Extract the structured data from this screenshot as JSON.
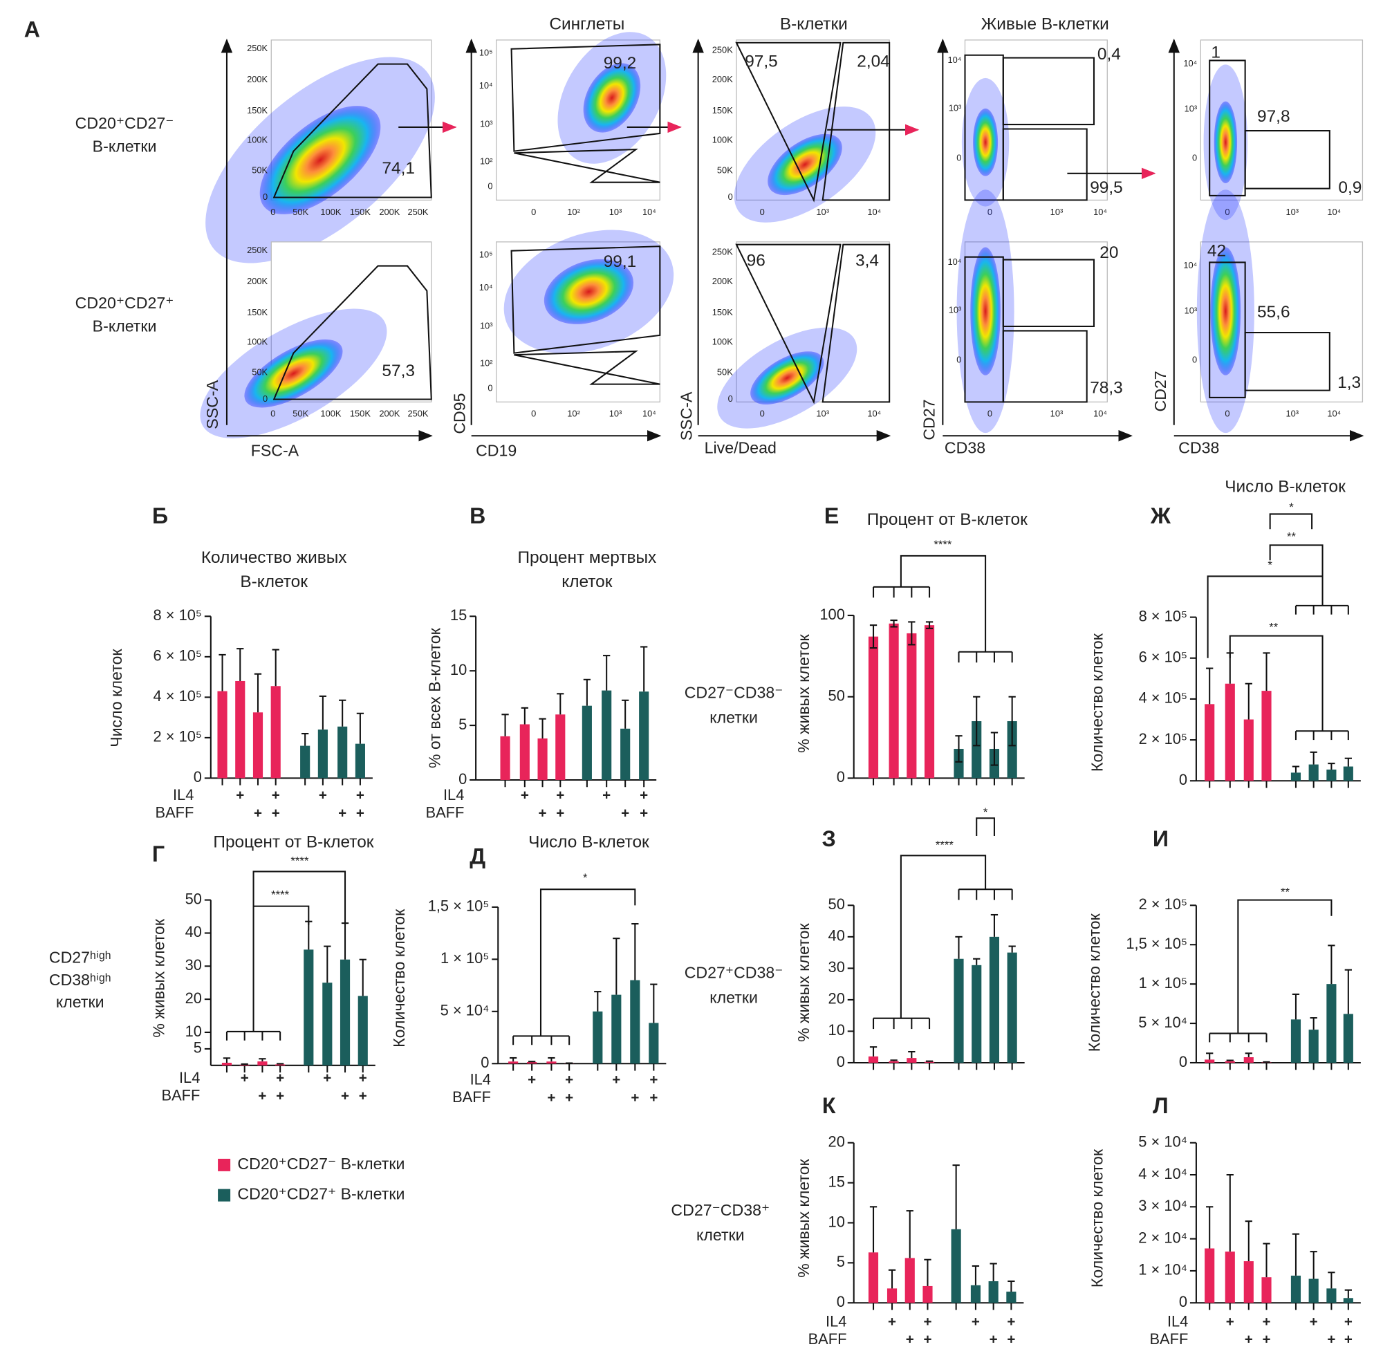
{
  "flow": {
    "letter": "А",
    "row_labels": [
      [
        "CD20⁺CD27⁻",
        "В-клетки"
      ],
      [
        "CD20⁺CD27⁺",
        "В-клетки"
      ]
    ],
    "columns": [
      {
        "xlabel": "FSC-A",
        "ylabel": "SSC-A",
        "yticks": [
          "250K",
          "200K",
          "150K",
          "100K",
          "50K",
          "0"
        ],
        "xticks": [
          "0",
          "50K",
          "100K",
          "150K",
          "200K",
          "250K"
        ],
        "gates": [
          [
            "74,1"
          ],
          [
            "57,3"
          ]
        ]
      },
      {
        "title": "Синглеты",
        "xlabel": "CD19",
        "ylabel": "CD95",
        "yticks": [
          "10⁵",
          "10⁴",
          "10³",
          "10²",
          "0"
        ],
        "xticks": [
          "0",
          "10²",
          "10³",
          "10⁴"
        ],
        "gates": [
          [
            "99,2"
          ],
          [
            "99,1"
          ]
        ]
      },
      {
        "title": "В-клетки",
        "xlabel": "Live/Dead",
        "ylabel": "SSC-A",
        "yticks": [
          "250K",
          "200K",
          "150K",
          "100K",
          "50K",
          "0"
        ],
        "xticks": [
          "0",
          "10³",
          "10⁴"
        ],
        "gates": [
          [
            "97,5",
            "2,04"
          ],
          [
            "96",
            "3,4"
          ]
        ]
      },
      {
        "title": "Живые В-клетки",
        "xlabel": "CD38",
        "ylabel": "CD27",
        "yticks": [
          "10⁴",
          "10³",
          "0"
        ],
        "xticks": [
          "0",
          "10³",
          "10⁴"
        ],
        "gates": [
          [
            "0,4",
            "99,5"
          ],
          [
            "20",
            "78,3"
          ]
        ]
      },
      {
        "xlabel": "CD38",
        "ylabel": "CD27",
        "yticks": [
          "10⁴",
          "10³",
          "0"
        ],
        "xticks": [
          "0",
          "10³",
          "10⁴"
        ],
        "gates": [
          [
            "1",
            "97,8",
            "0,9"
          ],
          [
            "42",
            "55,6",
            "1,3"
          ]
        ]
      }
    ]
  },
  "legend": [
    {
      "name": "CD20⁺CD27⁻ В-клетки",
      "color": "#e8245a"
    },
    {
      "name": "CD20⁺CD27⁺ В-клетки",
      "color": "#1b5e5c"
    }
  ],
  "treatments": [
    {
      "name": "IL4",
      "marks": [
        null,
        "+",
        null,
        "+"
      ]
    },
    {
      "name": "BAFF",
      "marks": [
        null,
        null,
        "+",
        "+"
      ]
    }
  ],
  "row_labels": [
    [
      "CD27ʰⁱᵍʰ",
      "CD38ʰⁱᵍʰ",
      "клетки"
    ],
    [
      "CD27⁻CD38⁻",
      "клетки"
    ],
    [
      "CD27⁺CD38⁻",
      "клетки"
    ],
    [
      "CD27⁻CD38⁺",
      "клетки"
    ]
  ],
  "chart_data": [
    {
      "type": "bar",
      "letter": "Б",
      "title": [
        "Количество живых",
        "В-клеток"
      ],
      "ylabel": "Число клеток",
      "ylim": [
        0,
        800000
      ],
      "yticks": [
        0,
        {
          "value": 200000,
          "label": "2 × 10⁵"
        },
        {
          "value": 400000,
          "label": "4 × 10⁵"
        },
        {
          "value": 600000,
          "label": "6 × 10⁵"
        },
        {
          "value": 800000,
          "label": "8 × 10⁵"
        }
      ],
      "series": [
        {
          "values": [
            430000,
            480000,
            325000,
            455000
          ],
          "errors": [
            180000,
            160000,
            190000,
            180000
          ]
        },
        {
          "values": [
            160000,
            240000,
            255000,
            170000
          ],
          "errors": [
            60000,
            165000,
            130000,
            150000
          ]
        }
      ],
      "treatments": true
    },
    {
      "type": "bar",
      "letter": "В",
      "title": [
        "Процент мертвых",
        "клеток"
      ],
      "ylabel": "% от всех В-клеток",
      "ylim": [
        0,
        15
      ],
      "yticks": [
        0,
        5,
        10,
        15
      ],
      "series": [
        {
          "values": [
            4,
            5.1,
            3.8,
            6
          ],
          "errors": [
            2,
            1.5,
            1.8,
            1.9
          ]
        },
        {
          "values": [
            6.8,
            8.2,
            4.7,
            8.1
          ],
          "errors": [
            2.4,
            3.2,
            2.6,
            4.1
          ]
        }
      ],
      "treatments": true
    },
    {
      "type": "bar",
      "letter": "Г",
      "title": [
        "Процент от В-клеток"
      ],
      "ylabel": "% живых клеток",
      "ylim": [
        0,
        50
      ],
      "yticks": [
        5,
        10,
        20,
        30,
        40,
        50
      ],
      "series": [
        {
          "values": [
            0.8,
            0.2,
            1.2,
            0.3
          ],
          "errors": [
            1.4,
            0.2,
            0.8,
            0.2
          ]
        },
        {
          "values": [
            35,
            25,
            32,
            21
          ],
          "errors": [
            8.5,
            11,
            11,
            11
          ]
        }
      ],
      "brackets": [
        "****",
        "****"
      ],
      "treatments": true
    },
    {
      "type": "bar",
      "letter": "Д",
      "title": [
        "Число В-клеток"
      ],
      "ylabel": "Количество клеток",
      "ylim": [
        0,
        150000
      ],
      "yticks": [
        0,
        {
          "value": 50000,
          "label": "5 × 10⁴"
        },
        {
          "value": 100000,
          "label": "1 × 10⁵"
        },
        {
          "value": 150000,
          "label": "1,5 × 10⁵"
        }
      ],
      "series": [
        {
          "values": [
            2000,
            1500,
            2000,
            200
          ],
          "errors": [
            3500,
            500,
            3500,
            300
          ]
        },
        {
          "values": [
            50000,
            66000,
            80000,
            39000
          ],
          "errors": [
            19000,
            54000,
            54000,
            37000
          ]
        }
      ],
      "brackets": [
        "*"
      ],
      "treatments": true
    },
    {
      "type": "bar",
      "letter": "Е",
      "title": [
        "Процент от В-клеток"
      ],
      "ylabel": "% живых клеток",
      "ylim": [
        0,
        100
      ],
      "yticks": [
        0,
        50,
        100
      ],
      "series": [
        {
          "values": [
            87,
            95,
            89,
            94
          ],
          "errors": [
            7,
            2,
            7,
            2
          ]
        },
        {
          "values": [
            18,
            35,
            18,
            35
          ],
          "errors": [
            8,
            15,
            10,
            15
          ]
        }
      ],
      "brackets": [
        "****"
      ],
      "treatments": false,
      "error_both": true
    },
    {
      "type": "bar",
      "letter": "Ж",
      "title": [
        "Число В-клеток"
      ],
      "ylabel": "Количество клеток",
      "ylim": [
        0,
        800000
      ],
      "yticks": [
        0,
        {
          "value": 200000,
          "label": "2 × 10⁵"
        },
        {
          "value": 400000,
          "label": "4 × 10⁵"
        },
        {
          "value": 600000,
          "label": "6 × 10⁵"
        },
        {
          "value": 800000,
          "label": "8 × 10⁵"
        }
      ],
      "series": [
        {
          "values": [
            375000,
            475000,
            300000,
            440000
          ],
          "errors": [
            175000,
            150000,
            175000,
            185000
          ]
        },
        {
          "values": [
            40000,
            80000,
            55000,
            70000
          ],
          "errors": [
            30000,
            60000,
            30000,
            40000
          ]
        }
      ],
      "brackets": [
        "*",
        "**",
        "*",
        "**"
      ],
      "treatments": false
    },
    {
      "type": "bar",
      "letter": "З",
      "ylabel": "% живых клеток",
      "ylim": [
        0,
        50
      ],
      "yticks": [
        0,
        10,
        20,
        30,
        40,
        50
      ],
      "series": [
        {
          "values": [
            2,
            0.5,
            1.5,
            0.3
          ],
          "errors": [
            3,
            0.3,
            2,
            0.2
          ]
        },
        {
          "values": [
            33,
            31,
            40,
            35
          ],
          "errors": [
            7,
            2,
            7,
            2
          ]
        }
      ],
      "brackets": [
        "****",
        "*"
      ],
      "treatments": false
    },
    {
      "type": "bar",
      "letter": "И",
      "ylabel": "Количество клеток",
      "ylim": [
        0,
        200000
      ],
      "yticks": [
        0,
        {
          "value": 50000,
          "label": "5 × 10⁴"
        },
        {
          "value": 100000,
          "label": "1 × 10⁵"
        },
        {
          "value": 150000,
          "label": "1,5 × 10⁵"
        },
        {
          "value": 200000,
          "label": "2 × 10⁵"
        }
      ],
      "series": [
        {
          "values": [
            4000,
            2000,
            7000,
            500
          ],
          "errors": [
            8000,
            1000,
            5000,
            500
          ]
        },
        {
          "values": [
            55000,
            42000,
            100000,
            62000
          ],
          "errors": [
            32000,
            15000,
            49000,
            56000
          ]
        }
      ],
      "brackets": [
        "**"
      ],
      "treatments": false
    },
    {
      "type": "bar",
      "letter": "К",
      "ylabel": "% живых клеток",
      "ylim": [
        0,
        20
      ],
      "yticks": [
        0,
        5,
        10,
        15,
        20
      ],
      "series": [
        {
          "values": [
            6.3,
            1.8,
            5.6,
            2.1
          ],
          "errors": [
            5.7,
            2.3,
            5.9,
            3.3
          ]
        },
        {
          "values": [
            9.2,
            2.2,
            2.7,
            1.4
          ],
          "errors": [
            8,
            2.4,
            2.2,
            1.3
          ]
        }
      ],
      "treatments": true
    },
    {
      "type": "bar",
      "letter": "Л",
      "ylabel": "Количество клеток",
      "ylim": [
        0,
        50000
      ],
      "yticks": [
        0,
        {
          "value": 10000,
          "label": "1 × 10⁴"
        },
        {
          "value": 20000,
          "label": "2 × 10⁴"
        },
        {
          "value": 30000,
          "label": "3 × 10⁴"
        },
        {
          "value": 40000,
          "label": "4 × 10⁴"
        },
        {
          "value": 50000,
          "label": "5 × 10⁴"
        }
      ],
      "series": [
        {
          "values": [
            17000,
            16000,
            13000,
            8000
          ],
          "errors": [
            13000,
            24000,
            12500,
            10500
          ]
        },
        {
          "values": [
            8500,
            7500,
            4500,
            1500
          ],
          "errors": [
            13000,
            8500,
            5000,
            2500
          ]
        }
      ],
      "treatments": true
    }
  ]
}
